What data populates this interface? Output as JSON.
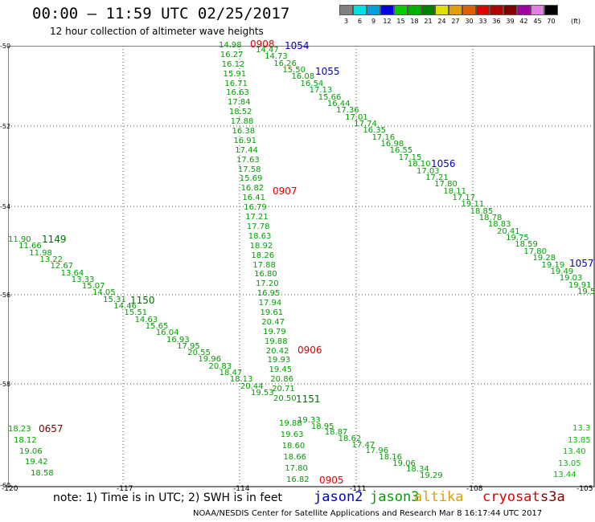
{
  "header": {
    "title": "00:00 – 11:59 UTC 02/25/2017",
    "subtitle": "12 hour collection of altimeter wave heights"
  },
  "scale": {
    "labels": [
      "3",
      "6",
      "9",
      "12",
      "15",
      "18",
      "21",
      "24",
      "27",
      "30",
      "33",
      "36",
      "39",
      "42",
      "45",
      "70"
    ],
    "unit": "(ft)",
    "colors": [
      "#808080",
      "#00e0e0",
      "#00a0e0",
      "#0000e0",
      "#00d000",
      "#00b000",
      "#008000",
      "#e0e000",
      "#e0a000",
      "#e06000",
      "#e00000",
      "#b00000",
      "#800000",
      "#a000a0",
      "#e080e0",
      "#000000"
    ]
  },
  "axes": {
    "lat_labels": [
      "-50",
      "-52",
      "-54",
      "-56",
      "-58",
      "-60"
    ],
    "lon_labels": [
      "-120",
      "-117",
      "-114",
      "-111",
      "-108",
      "-105"
    ]
  },
  "passes": [
    {
      "label": "0908",
      "color": "#e00000"
    },
    {
      "label": "1054",
      "color": "#0000c0"
    },
    {
      "label": "1055",
      "color": "#0000c0"
    },
    {
      "label": "1056",
      "color": "#0000c0"
    },
    {
      "label": "1057",
      "color": "#0000c0"
    },
    {
      "label": "0907",
      "color": "#e00000"
    },
    {
      "label": "1149",
      "color": "#007000"
    },
    {
      "label": "1150",
      "color": "#007000"
    },
    {
      "label": "0906",
      "color": "#e00000"
    },
    {
      "label": "1151",
      "color": "#007000"
    },
    {
      "label": "0657",
      "color": "#800000"
    },
    {
      "label": "0905",
      "color": "#e00000"
    }
  ],
  "tracks": [
    {
      "name": "track-0908",
      "color": "#00a000",
      "values": [
        "14.98",
        "16.27",
        "16.12",
        "15.91",
        "16.71",
        "16.63",
        "17.84",
        "18.52",
        "17.88",
        "16.38",
        "16.91",
        "17.44",
        "17.63",
        "17.58",
        "15.69",
        "16.82",
        "16.41",
        "16.79",
        "17.21",
        "17.78",
        "18.63",
        "18.92",
        "18.26",
        "17.88",
        "16.80",
        "17.20",
        "16.95",
        "17.94",
        "19.61",
        "20.47",
        "19.79",
        "19.88",
        "20.42",
        "19.93",
        "19.45",
        "20.86",
        "20.71",
        "20.50"
      ]
    },
    {
      "name": "track-1055",
      "color": "#00a000",
      "values": [
        "14.47",
        "14.73",
        "16.26",
        "15.50",
        "16.08",
        "16.54",
        "17.13",
        "15.66",
        "16.44",
        "17.36",
        "17.01",
        "17.74",
        "16.35",
        "17.16",
        "16.98",
        "16.55",
        "17.15",
        "18.10",
        "17.03",
        "17.21",
        "17.80",
        "18.11",
        "17.17",
        "19.11",
        "18.85",
        "18.78",
        "18.83",
        "20.41",
        "19.75",
        "18.59",
        "17.80",
        "19.28",
        "19.19",
        "19.49",
        "19.03",
        "19.91",
        "19.5"
      ]
    },
    {
      "name": "track-1150",
      "color": "#00a000",
      "values": [
        "11.90",
        "11.66",
        "11.98",
        "13.22",
        "12.67",
        "13.64",
        "13.33",
        "15.07",
        "14.05",
        "15.31",
        "14.46",
        "15.51",
        "14.63",
        "15.65",
        "16.04",
        "16.93",
        "17.95",
        "20.55",
        "19.96",
        "20.83",
        "18.47",
        "18.13",
        "20.44",
        "19.53"
      ]
    },
    {
      "name": "track-0906",
      "color": "#00a000",
      "values": [
        "19.33",
        "18.95",
        "18.87",
        "18.62",
        "17.47",
        "17.96",
        "18.16",
        "19.06",
        "18.34",
        "19.29"
      ]
    },
    {
      "name": "track-0905",
      "color": "#00a000",
      "values": [
        "19.88",
        "19.63",
        "18.60",
        "18.66",
        "17.80",
        "16.82"
      ]
    },
    {
      "name": "track-0657",
      "color": "#00a000",
      "values": [
        "18.23",
        "18.12",
        "19.06",
        "19.42",
        "18.58"
      ]
    },
    {
      "name": "track-east",
      "color": "#00c000",
      "values": [
        "13.3",
        "13.85",
        "13.40",
        "13.05",
        "13.44"
      ]
    }
  ],
  "footer": {
    "note": "note: 1) Time is in UTC; 2) SWH is in feet",
    "legend": [
      {
        "label": "jason2",
        "color": "#0000c0"
      },
      {
        "label": "jason3",
        "color": "#00a000"
      },
      {
        "label": "altika",
        "color": "#e0a000"
      },
      {
        "label": "cryosat",
        "color": "#e00000"
      },
      {
        "label": "s3a",
        "color": "#800000"
      }
    ],
    "credit": "NOAA/NESDIS Center for Satellite Applications and Research    Mar  8 16:17:44 UTC 2017"
  }
}
